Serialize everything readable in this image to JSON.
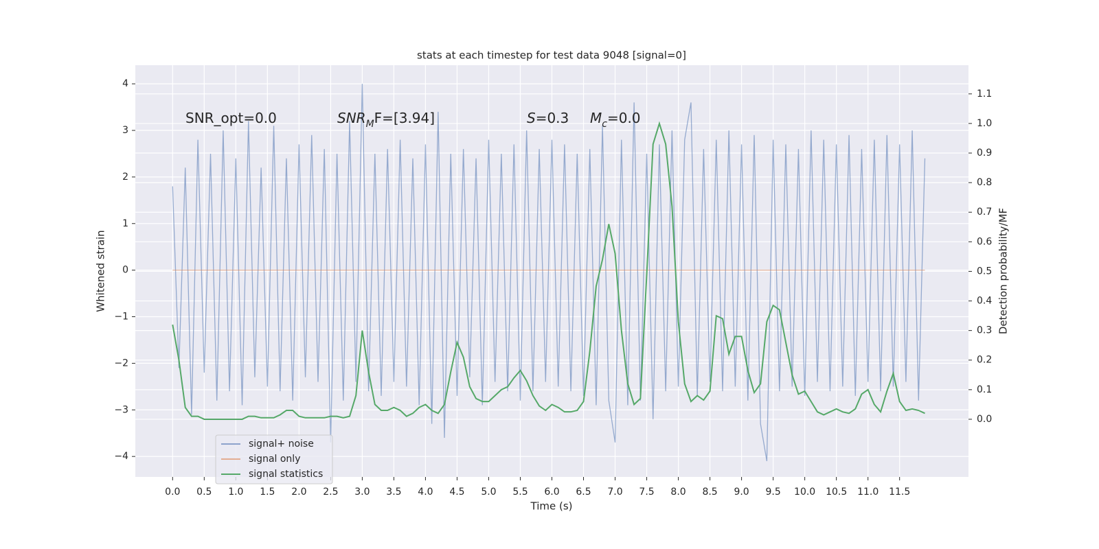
{
  "chart_data": {
    "type": "line",
    "title": "stats at each timestep for test data 9048 [signal=0]",
    "xlabel": "Time (s)",
    "ylabel": "Whitened strain",
    "y2label": "Detection probability/MF",
    "annotations": [
      {
        "text": "SNR_opt=0.0"
      },
      {
        "base": "SNR",
        "sub": "M",
        "rest": "F=[3.94]"
      },
      {
        "base": "S",
        "rest": "=0.3"
      },
      {
        "base": "M",
        "sub": "c",
        "rest": "=0.0"
      }
    ],
    "x": [
      0,
      0.1,
      0.2,
      0.3,
      0.4,
      0.5,
      0.6,
      0.7,
      0.8,
      0.9,
      1,
      1.1,
      1.2,
      1.3,
      1.4,
      1.5,
      1.6,
      1.7,
      1.8,
      1.9,
      2,
      2.1,
      2.2,
      2.3,
      2.4,
      2.5,
      2.6,
      2.7,
      2.8,
      2.9,
      3,
      3.1,
      3.2,
      3.3,
      3.4,
      3.5,
      3.6,
      3.7,
      3.8,
      3.9,
      4,
      4.1,
      4.2,
      4.3,
      4.4,
      4.5,
      4.6,
      4.7,
      4.8,
      4.9,
      5,
      5.1,
      5.2,
      5.3,
      5.4,
      5.5,
      5.6,
      5.7,
      5.8,
      5.9,
      6,
      6.1,
      6.2,
      6.3,
      6.4,
      6.5,
      6.6,
      6.7,
      6.8,
      6.9,
      7,
      7.1,
      7.2,
      7.3,
      7.4,
      7.5,
      7.6,
      7.7,
      7.8,
      7.9,
      8,
      8.1,
      8.2,
      8.3,
      8.4,
      8.5,
      8.6,
      8.7,
      8.8,
      8.9,
      9,
      9.1,
      9.2,
      9.3,
      9.4,
      9.5,
      9.6,
      9.7,
      9.8,
      9.9,
      10,
      10.1,
      10.2,
      10.3,
      10.4,
      10.5,
      10.6,
      10.7,
      10.8,
      10.9,
      11,
      11.1,
      11.2,
      11.3,
      11.4,
      11.5,
      11.6,
      11.7,
      11.8,
      11.9
    ],
    "series": [
      {
        "name": "signal+ noise",
        "color": "#4c72b0",
        "values": [
          1.8,
          -2.1,
          2.2,
          -3.1,
          2.8,
          -2.2,
          2.5,
          -2.8,
          3.0,
          -2.6,
          2.4,
          -2.9,
          3.2,
          -2.3,
          2.2,
          -2.5,
          3.1,
          -2.6,
          2.4,
          -2.8,
          2.7,
          -2.3,
          2.9,
          -2.4,
          2.6,
          -3.7,
          2.5,
          -2.8,
          3.2,
          -2.4,
          4.0,
          -2.6,
          2.5,
          -2.7,
          2.6,
          -2.4,
          2.8,
          -2.5,
          2.4,
          -2.9,
          2.7,
          -3.3,
          3.4,
          -3.6,
          2.5,
          -2.7,
          2.6,
          -2.3,
          2.4,
          -2.9,
          2.8,
          -2.4,
          2.5,
          -2.6,
          2.7,
          -2.8,
          3.0,
          -2.6,
          2.6,
          -2.4,
          2.8,
          -2.5,
          2.7,
          -2.6,
          2.5,
          -2.7,
          2.6,
          -2.9,
          3.1,
          -2.8,
          -3.7,
          2.8,
          -2.9,
          3.6,
          -2.8,
          2.5,
          -3.2,
          2.7,
          -2.6,
          3.0,
          -2.5,
          2.8,
          3.6,
          -2.7,
          2.6,
          -2.4,
          2.8,
          -2.6,
          3.0,
          -2.5,
          2.7,
          -2.8,
          2.9,
          -3.3,
          -4.1,
          2.8,
          -2.6,
          2.7,
          -2.5,
          2.6,
          -2.7,
          3.0,
          -2.4,
          2.8,
          -2.6,
          2.7,
          -2.5,
          2.9,
          -2.7,
          2.6,
          -2.4,
          2.8,
          -2.6,
          2.9,
          -2.5,
          2.7,
          -2.4,
          3.0,
          -2.8,
          2.4
        ]
      },
      {
        "name": "signal only",
        "color": "#dd8452",
        "values": [
          0,
          0,
          0,
          0,
          0,
          0,
          0,
          0,
          0,
          0,
          0,
          0,
          0,
          0,
          0,
          0,
          0,
          0,
          0,
          0,
          0,
          0,
          0,
          0,
          0,
          0,
          0,
          0,
          0,
          0,
          0,
          0,
          0,
          0,
          0,
          0,
          0,
          0,
          0,
          0,
          0,
          0,
          0,
          0,
          0,
          0,
          0,
          0,
          0,
          0,
          0,
          0,
          0,
          0,
          0,
          0,
          0,
          0,
          0,
          0,
          0,
          0,
          0,
          0,
          0,
          0,
          0,
          0,
          0,
          0,
          0,
          0,
          0,
          0,
          0,
          0,
          0,
          0,
          0,
          0,
          0,
          0,
          0,
          0,
          0,
          0,
          0,
          0,
          0,
          0,
          0,
          0,
          0,
          0,
          0,
          0,
          0,
          0,
          0,
          0,
          0,
          0,
          0,
          0,
          0,
          0,
          0,
          0,
          0,
          0,
          0,
          0,
          0,
          0,
          0,
          0,
          0,
          0,
          0,
          0
        ]
      },
      {
        "name": "signal statistics",
        "color": "#55a868",
        "axis": "y2",
        "values": [
          0.32,
          0.2,
          0.04,
          0.01,
          0.01,
          0.0,
          0.0,
          0.0,
          0.0,
          0.0,
          0.0,
          0.0,
          0.01,
          0.01,
          0.005,
          0.005,
          0.005,
          0.015,
          0.03,
          0.03,
          0.01,
          0.005,
          0.005,
          0.005,
          0.005,
          0.01,
          0.01,
          0.005,
          0.01,
          0.08,
          0.3,
          0.16,
          0.05,
          0.03,
          0.03,
          0.04,
          0.03,
          0.01,
          0.02,
          0.04,
          0.05,
          0.03,
          0.02,
          0.05,
          0.16,
          0.26,
          0.21,
          0.11,
          0.07,
          0.06,
          0.06,
          0.08,
          0.1,
          0.11,
          0.14,
          0.165,
          0.13,
          0.08,
          0.045,
          0.03,
          0.05,
          0.04,
          0.025,
          0.025,
          0.03,
          0.06,
          0.23,
          0.45,
          0.54,
          0.66,
          0.56,
          0.3,
          0.12,
          0.05,
          0.07,
          0.49,
          0.93,
          1.0,
          0.93,
          0.72,
          0.33,
          0.12,
          0.06,
          0.08,
          0.065,
          0.095,
          0.35,
          0.34,
          0.22,
          0.28,
          0.28,
          0.165,
          0.09,
          0.12,
          0.33,
          0.385,
          0.37,
          0.26,
          0.15,
          0.085,
          0.095,
          0.06,
          0.025,
          0.015,
          0.025,
          0.035,
          0.025,
          0.02,
          0.035,
          0.085,
          0.1,
          0.05,
          0.025,
          0.095,
          0.155,
          0.06,
          0.03,
          0.035,
          0.03,
          0.02
        ]
      }
    ],
    "xlim": [
      -0.59,
      12.59
    ],
    "ylim": [
      -4.44,
      4.4
    ],
    "y2lim": [
      -0.195,
      1.197
    ],
    "xticks": [
      {
        "value": 0,
        "label": "0.0"
      },
      0.5,
      {
        "value": 1,
        "label": "1.0"
      },
      1.5,
      {
        "value": 2,
        "label": "2.0"
      },
      2.5,
      {
        "value": 3,
        "label": "3.0"
      },
      3.5,
      {
        "value": 4,
        "label": "4.0"
      },
      4.5,
      {
        "value": 5,
        "label": "5.0"
      },
      5.5,
      {
        "value": 6,
        "label": "6.0"
      },
      6.5,
      {
        "value": 7,
        "label": "7.0"
      },
      7.5,
      {
        "value": 8,
        "label": "8.0"
      },
      8.5,
      {
        "value": 9,
        "label": "9.0"
      },
      9.5,
      {
        "value": 10,
        "label": "10.0"
      },
      10.5,
      {
        "value": 11,
        "label": "11.0"
      },
      11.5
    ],
    "yticks": [
      {
        "value": -4,
        "label": "−4"
      },
      {
        "value": -3,
        "label": "−3"
      },
      {
        "value": -2,
        "label": "−2"
      },
      {
        "value": -1,
        "label": "−1"
      },
      0,
      1,
      2,
      3,
      4
    ],
    "y2ticks": [
      {
        "value": 0,
        "label": "0.0"
      },
      0.1,
      0.2,
      0.3,
      0.4,
      0.5,
      0.6,
      0.7,
      0.8,
      0.9,
      {
        "value": 1,
        "label": "1.0"
      },
      1.1
    ],
    "grid": true,
    "legend_loc": "lower left"
  }
}
